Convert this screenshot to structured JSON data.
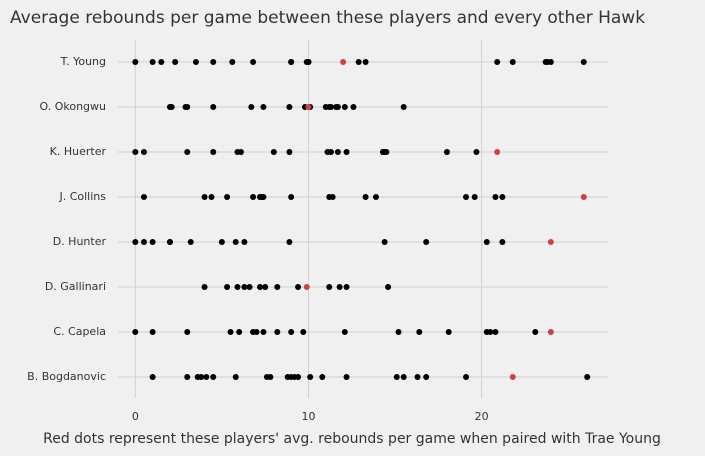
{
  "chart_data": {
    "type": "strip",
    "title": "Average rebounds per game between these players and every other Hawk",
    "xlabel": "Red dots represent these players' avg. rebounds per game when paired with Trae Young",
    "categories": [
      "T. Young",
      "O. Okongwu",
      "K. Huerter",
      "J. Collins",
      "D. Hunter",
      "D. Gallinari",
      "C. Capela",
      "B. Bogdanovic"
    ],
    "values": [
      [
        0,
        1.0,
        1.5,
        2.3,
        3.5,
        4.5,
        5.6,
        6.8,
        9.0,
        9.0,
        9.9,
        10.0,
        10.0,
        12.9,
        13.3,
        20.9,
        21.8,
        23.7,
        23.8,
        24.0,
        25.9
      ],
      [
        2.0,
        2.1,
        2.9,
        3.0,
        4.5,
        6.7,
        7.4,
        8.9,
        9.8,
        10.1,
        11.0,
        11.2,
        11.3,
        11.6,
        11.7,
        12.1,
        12.6,
        15.5
      ],
      [
        0,
        0.5,
        3.0,
        4.5,
        5.9,
        6.1,
        8.0,
        8.9,
        11.1,
        11.3,
        11.7,
        12.2,
        14.3,
        14.4,
        14.5,
        18.0,
        19.7
      ],
      [
        0.5,
        4.0,
        4.4,
        5.3,
        6.8,
        7.2,
        7.3,
        7.4,
        9.0,
        11.2,
        11.4,
        13.3,
        13.9,
        19.1,
        19.6,
        20.8,
        21.2
      ],
      [
        0,
        0.5,
        1.0,
        2.0,
        2.0,
        3.2,
        5.0,
        5.8,
        6.3,
        8.9,
        14.4,
        16.8,
        20.3,
        21.2
      ],
      [
        4.0,
        5.3,
        5.9,
        6.3,
        6.6,
        7.2,
        7.5,
        8.2,
        9.4,
        11.2,
        11.8,
        12.2,
        14.6
      ],
      [
        0,
        1.0,
        3.0,
        5.5,
        6.0,
        6.8,
        7.0,
        7.4,
        8.2,
        9.0,
        9.7,
        12.1,
        15.2,
        16.4,
        18.1,
        20.3,
        20.5,
        20.8,
        23.1
      ],
      [
        1.0,
        3.0,
        3.6,
        3.8,
        4.1,
        4.5,
        5.8,
        7.6,
        7.8,
        8.8,
        9.0,
        9.2,
        9.4,
        10.1,
        10.8,
        12.2,
        15.1,
        15.5,
        16.3,
        16.8,
        19.1,
        26.1
      ]
    ],
    "highlight": [
      12.0,
      10.0,
      20.9,
      25.9,
      24.0,
      9.9,
      24.0,
      21.8
    ],
    "color": "#000000",
    "highlight_color": "#d04040",
    "xlim": [
      -1,
      27.3
    ],
    "xticks": [
      0,
      10,
      20
    ],
    "grid": true
  }
}
